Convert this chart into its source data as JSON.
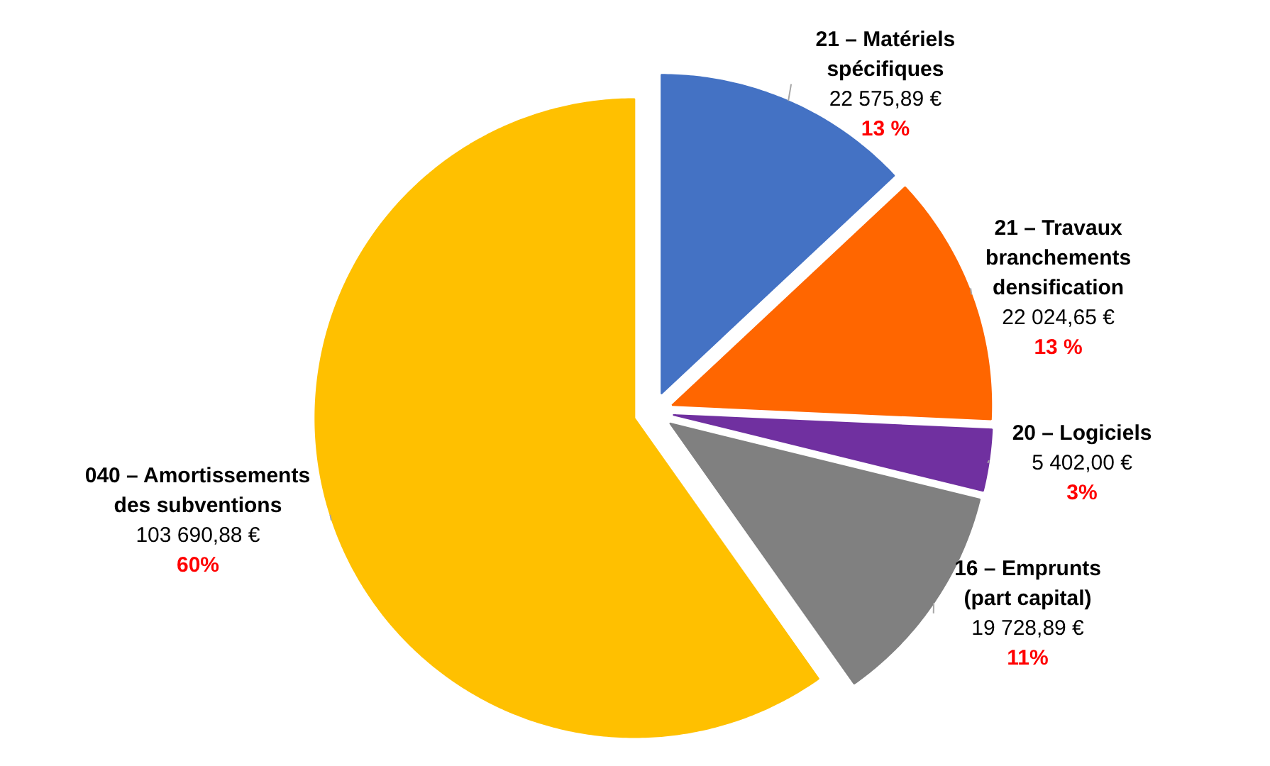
{
  "chart_data": {
    "type": "pie",
    "categories": [
      "21 – Matériels\nspécifiques",
      "21 – Travaux\nbranchements\ndensification",
      "20 – Logiciels",
      "16 – Emprunts\n(part capital)",
      "040 – Amortissements\ndes subventions"
    ],
    "values": [
      22575.89,
      22024.65,
      5402.0,
      19728.89,
      103690.88
    ],
    "colors": [
      "#4472c4",
      "#ff6600",
      "#7030a0",
      "#808080",
      "#ffc000"
    ],
    "value_labels": [
      "22 575,89 €",
      "22 024,65 €",
      "5 402,00 €",
      "19 728,89 €",
      "103 690,88 €"
    ],
    "annotations": [
      {
        "text": "13 %",
        "x": "21 – Matériels\nspécifiques"
      },
      {
        "text": "13 %",
        "x": "21 – Travaux\nbranchements\ndensification"
      },
      {
        "text": "3%",
        "x": "20 – Logiciels"
      },
      {
        "text": "11%",
        "x": "16 – Emprunts\n(part capital)"
      },
      {
        "text": "60%",
        "x": "040 – Amortissements\ndes subventions"
      }
    ]
  }
}
